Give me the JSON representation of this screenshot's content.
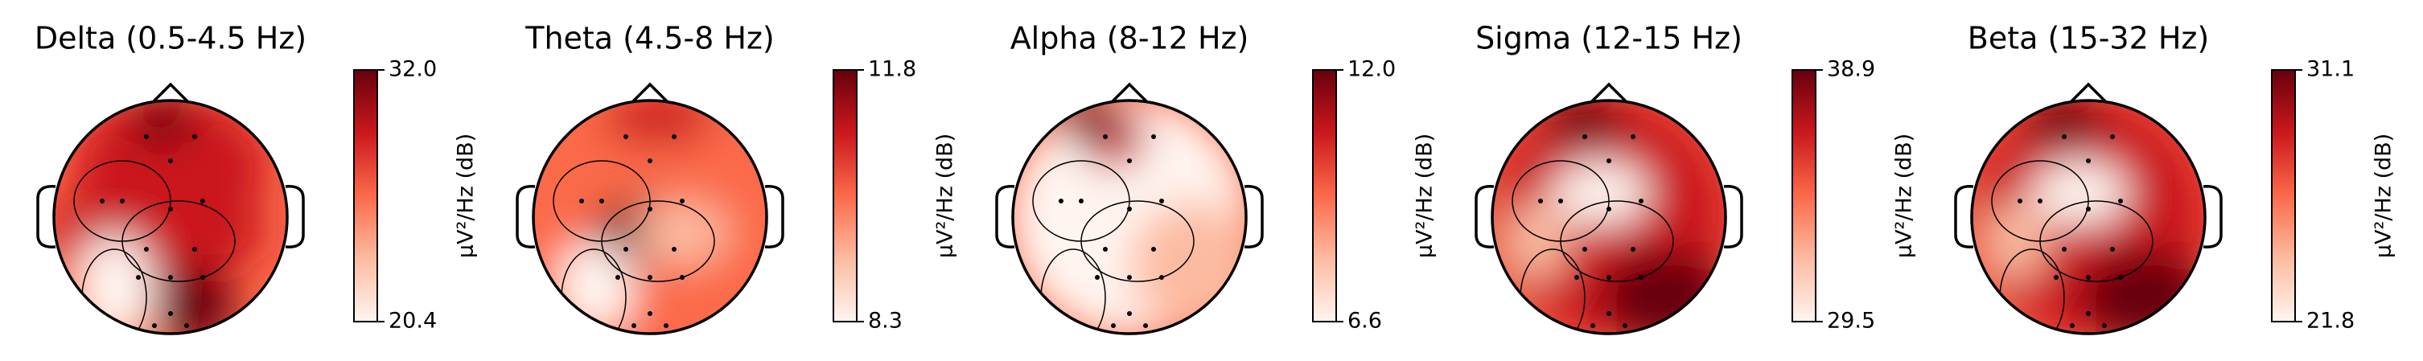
{
  "chart_data": [
    {
      "type": "topomap",
      "title": "Delta (0.5-4.5 Hz)",
      "cmap": "Reds",
      "colorbar_label": "µV²/Hz (dB)",
      "clim": [
        20.4,
        32.0
      ],
      "cticks": [
        20.4,
        {
          "value": 32.0,
          "label": "32.0"
        }
      ]
    },
    {
      "type": "topomap",
      "title": "Theta (4.5-8 Hz)",
      "cmap": "Reds",
      "colorbar_label": "µV²/Hz (dB)",
      "clim": [
        8.3,
        11.8
      ],
      "cticks": [
        8.3,
        11.8
      ]
    },
    {
      "type": "topomap",
      "title": "Alpha (8-12 Hz)",
      "cmap": "Reds",
      "colorbar_label": "µV²/Hz (dB)",
      "clim": [
        6.6,
        12.0
      ],
      "cticks": [
        6.6,
        {
          "value": 12.0,
          "label": "12.0"
        }
      ]
    },
    {
      "type": "topomap",
      "title": "Sigma (12-15 Hz)",
      "cmap": "Reds",
      "colorbar_label": "µV²/Hz (dB)",
      "clim": [
        29.5,
        38.9
      ],
      "cticks": [
        29.5,
        38.9
      ]
    },
    {
      "type": "topomap",
      "title": "Beta (15-32 Hz)",
      "cmap": "Reds",
      "colorbar_label": "µV²/Hz (dB)",
      "clim": [
        21.8,
        31.1
      ],
      "cticks": [
        21.8,
        31.1
      ]
    }
  ]
}
